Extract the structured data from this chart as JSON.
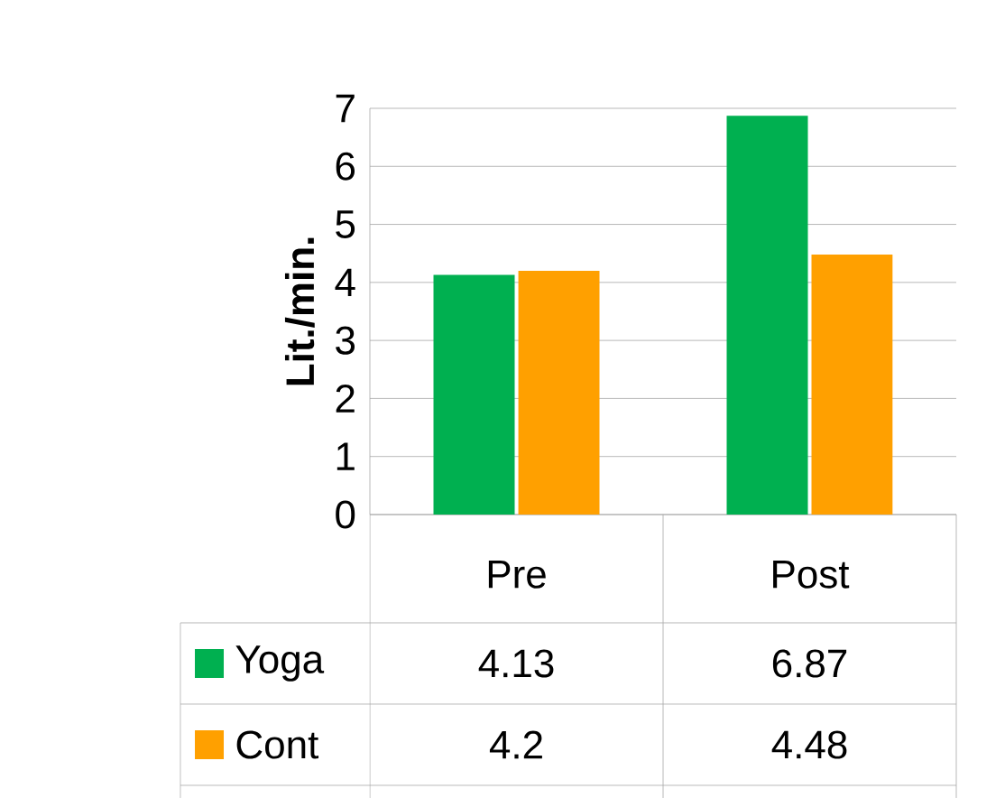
{
  "chart_data": {
    "type": "bar",
    "ylabel": "Lit./min.",
    "categories": [
      "Pre",
      "Post"
    ],
    "series": [
      {
        "name": "Yoga",
        "color": "#00b050",
        "values": [
          4.13,
          6.87
        ]
      },
      {
        "name": "Cont",
        "color": "#ffa000",
        "values": [
          4.2,
          4.48
        ]
      }
    ],
    "ylim": [
      0,
      7
    ],
    "yticks": [
      0,
      1,
      2,
      3,
      4,
      5,
      6,
      7
    ],
    "grid": "y",
    "legend": "bottom",
    "data_labels": true
  }
}
